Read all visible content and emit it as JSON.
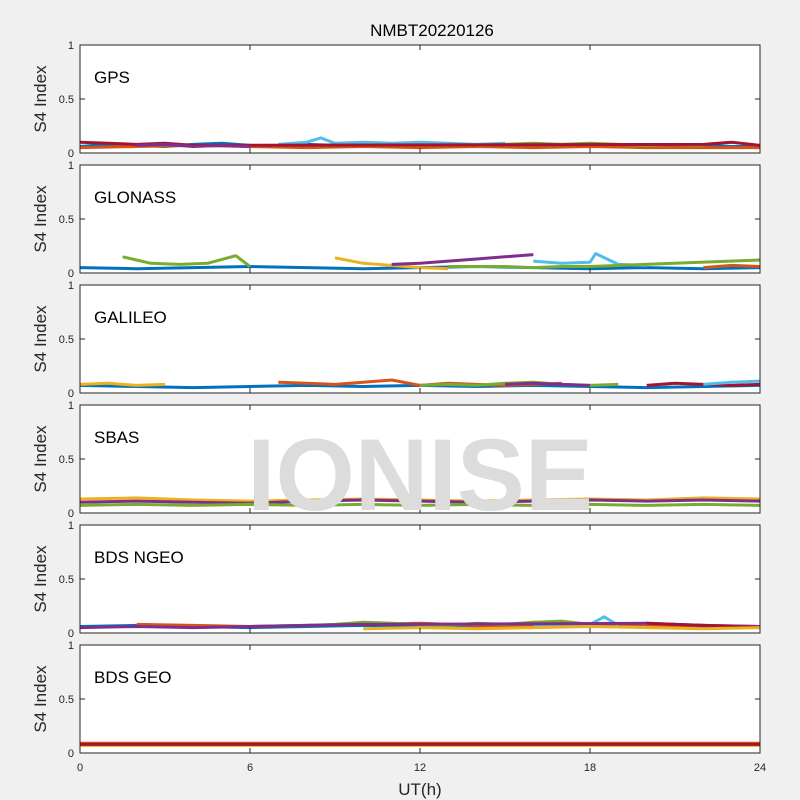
{
  "title": "NMBT20220126",
  "watermark": "IONISE",
  "colors": {
    "figure_bg": "#f0f0f0",
    "axes_bg": "#ffffff",
    "axis": "#262626",
    "watermark": "#dcdcdc",
    "series": [
      "#0072bd",
      "#d95319",
      "#edb120",
      "#7e2f8e",
      "#77ac30",
      "#4dbeee",
      "#a2142f"
    ]
  },
  "chart_data": {
    "type": "line",
    "title": "NMBT20220126",
    "xlabel": "UT(h)",
    "xlim": [
      0,
      24
    ],
    "xticks": [
      0,
      6,
      12,
      18,
      24
    ],
    "ylim": [
      0,
      1
    ],
    "yticks": [
      0,
      0.5,
      1
    ],
    "ytick_labels": [
      "0",
      "0.5",
      "1"
    ],
    "grid": false,
    "legend": "none",
    "panels": [
      {
        "label": "GPS",
        "ylabel": "S4 Index",
        "series": [
          {
            "color": "#0072bd",
            "x": [
              0,
              1,
              2,
              3,
              4,
              5,
              6,
              7,
              8,
              9,
              10,
              11,
              12,
              13,
              14,
              15,
              16,
              17,
              18,
              19,
              20,
              21,
              22,
              23,
              24
            ],
            "y": [
              0.06,
              0.08,
              0.07,
              0.06,
              0.08,
              0.09,
              0.07,
              0.06,
              0.08,
              0.07,
              0.06,
              0.08,
              0.09,
              0.07,
              0.06,
              0.08,
              0.07,
              0.06,
              0.07,
              0.06,
              0.05,
              0.06,
              0.07,
              0.06,
              0.06
            ]
          },
          {
            "color": "#d95319",
            "x": [
              0,
              2,
              4,
              6,
              8,
              10,
              12,
              14,
              16,
              18,
              20,
              22,
              24
            ],
            "y": [
              0.05,
              0.06,
              0.07,
              0.06,
              0.05,
              0.06,
              0.05,
              0.06,
              0.05,
              0.06,
              0.05,
              0.05,
              0.05
            ]
          },
          {
            "color": "#4dbeee",
            "x": [
              7,
              8,
              8.5,
              9,
              10,
              11,
              12,
              13,
              14,
              15
            ],
            "y": [
              0.08,
              0.1,
              0.14,
              0.09,
              0.1,
              0.09,
              0.1,
              0.09,
              0.08,
              0.09
            ]
          },
          {
            "color": "#77ac30",
            "x": [
              14,
              15,
              16,
              17,
              18,
              19,
              20,
              21,
              22
            ],
            "y": [
              0.07,
              0.08,
              0.09,
              0.08,
              0.09,
              0.08,
              0.07,
              0.08,
              0.07
            ]
          },
          {
            "color": "#a2142f",
            "x": [
              0,
              1,
              2,
              3,
              4,
              22,
              23,
              24
            ],
            "y": [
              0.1,
              0.09,
              0.08,
              0.09,
              0.07,
              0.08,
              0.1,
              0.07
            ]
          },
          {
            "color": "#7e2f8e",
            "x": [
              2,
              3,
              4,
              5,
              6
            ],
            "y": [
              0.07,
              0.08,
              0.06,
              0.07,
              0.06
            ]
          }
        ]
      },
      {
        "label": "GLONASS",
        "ylabel": "S4 Index",
        "series": [
          {
            "color": "#0072bd",
            "x": [
              0,
              2,
              4,
              6,
              8,
              10,
              12,
              14,
              16,
              18,
              20,
              22,
              24
            ],
            "y": [
              0.05,
              0.04,
              0.05,
              0.06,
              0.05,
              0.04,
              0.05,
              0.06,
              0.05,
              0.04,
              0.05,
              0.04,
              0.05
            ]
          },
          {
            "color": "#77ac30",
            "x": [
              1.5,
              2.5,
              3.5,
              4.5,
              5.5,
              6
            ],
            "y": [
              0.15,
              0.09,
              0.08,
              0.09,
              0.16,
              0.06
            ]
          },
          {
            "color": "#edb120",
            "x": [
              9,
              10,
              11,
              12,
              13
            ],
            "y": [
              0.14,
              0.09,
              0.07,
              0.05,
              0.04
            ]
          },
          {
            "color": "#7e2f8e",
            "x": [
              11,
              12,
              13,
              14,
              15,
              16
            ],
            "y": [
              0.08,
              0.09,
              0.11,
              0.13,
              0.15,
              0.17
            ]
          },
          {
            "color": "#4dbeee",
            "x": [
              16,
              17,
              18,
              18.2,
              19,
              20
            ],
            "y": [
              0.11,
              0.09,
              0.1,
              0.18,
              0.08,
              0.07
            ]
          },
          {
            "color": "#d95319",
            "x": [
              22,
              23,
              24
            ],
            "y": [
              0.05,
              0.07,
              0.06
            ]
          },
          {
            "color": "#77ac30",
            "x": [
              13,
              14,
              15,
              16,
              17,
              18,
              24
            ],
            "y": [
              0.06,
              0.06,
              0.06,
              0.05,
              0.06,
              0.06,
              0.12
            ]
          }
        ]
      },
      {
        "label": "GALILEO",
        "ylabel": "S4 Index",
        "series": [
          {
            "color": "#0072bd",
            "x": [
              0,
              2,
              4,
              6,
              8,
              10,
              12,
              14,
              16,
              18,
              20,
              22,
              24
            ],
            "y": [
              0.07,
              0.06,
              0.05,
              0.06,
              0.07,
              0.06,
              0.07,
              0.06,
              0.07,
              0.06,
              0.05,
              0.06,
              0.07
            ]
          },
          {
            "color": "#d95319",
            "x": [
              7,
              8,
              9,
              10,
              11,
              12,
              13,
              14,
              15,
              16,
              17
            ],
            "y": [
              0.1,
              0.09,
              0.08,
              0.1,
              0.12,
              0.07,
              0.09,
              0.08,
              0.07,
              0.08,
              0.09
            ]
          },
          {
            "color": "#77ac30",
            "x": [
              12,
              13,
              14,
              15,
              16,
              17,
              18,
              19
            ],
            "y": [
              0.07,
              0.08,
              0.07,
              0.09,
              0.1,
              0.08,
              0.07,
              0.08
            ]
          },
          {
            "color": "#a2142f",
            "x": [
              20,
              21,
              22,
              23,
              24
            ],
            "y": [
              0.07,
              0.09,
              0.08,
              0.07,
              0.08
            ]
          },
          {
            "color": "#4dbeee",
            "x": [
              22,
              23,
              24
            ],
            "y": [
              0.08,
              0.1,
              0.11
            ]
          },
          {
            "color": "#7e2f8e",
            "x": [
              15,
              16,
              17,
              18
            ],
            "y": [
              0.08,
              0.09,
              0.08,
              0.07
            ]
          },
          {
            "color": "#edb120",
            "x": [
              0,
              1,
              2,
              3
            ],
            "y": [
              0.08,
              0.09,
              0.07,
              0.08
            ]
          }
        ]
      },
      {
        "label": "SBAS",
        "ylabel": "S4 Index",
        "series": [
          {
            "color": "#edb120",
            "x": [
              0,
              2,
              4,
              6,
              8,
              10,
              12,
              14,
              16,
              18,
              20,
              22,
              24
            ],
            "y": [
              0.13,
              0.14,
              0.12,
              0.11,
              0.12,
              0.13,
              0.12,
              0.11,
              0.12,
              0.13,
              0.12,
              0.14,
              0.13
            ]
          },
          {
            "color": "#7e2f8e",
            "x": [
              0,
              2,
              4,
              6,
              8,
              10,
              12,
              14,
              16,
              18,
              20,
              22,
              24
            ],
            "y": [
              0.1,
              0.11,
              0.1,
              0.09,
              0.11,
              0.12,
              0.11,
              0.1,
              0.11,
              0.12,
              0.11,
              0.12,
              0.11
            ]
          },
          {
            "color": "#77ac30",
            "x": [
              0,
              2,
              4,
              6,
              8,
              10,
              12,
              14,
              16,
              18,
              20,
              22,
              24
            ],
            "y": [
              0.07,
              0.08,
              0.07,
              0.08,
              0.07,
              0.08,
              0.07,
              0.08,
              0.07,
              0.08,
              0.07,
              0.08,
              0.07
            ]
          }
        ]
      },
      {
        "label": "BDS NGEO",
        "ylabel": "S4 Index",
        "series": [
          {
            "color": "#0072bd",
            "x": [
              0,
              2,
              4,
              6,
              8,
              10,
              12,
              14,
              16,
              18,
              20,
              22,
              24
            ],
            "y": [
              0.06,
              0.07,
              0.06,
              0.05,
              0.06,
              0.07,
              0.06,
              0.05,
              0.06,
              0.07,
              0.06,
              0.05,
              0.06
            ]
          },
          {
            "color": "#d95319",
            "x": [
              2,
              4,
              6,
              8,
              10,
              12,
              14,
              16,
              18,
              20,
              22,
              24
            ],
            "y": [
              0.08,
              0.07,
              0.06,
              0.07,
              0.08,
              0.09,
              0.07,
              0.06,
              0.07,
              0.06,
              0.07,
              0.06
            ]
          },
          {
            "color": "#77ac30",
            "x": [
              8,
              9,
              10,
              11,
              12,
              13,
              14,
              15,
              16,
              17,
              18
            ],
            "y": [
              0.07,
              0.08,
              0.1,
              0.09,
              0.08,
              0.07,
              0.09,
              0.08,
              0.1,
              0.11,
              0.08
            ]
          },
          {
            "color": "#4dbeee",
            "x": [
              16,
              17,
              18,
              18.5,
              19
            ],
            "y": [
              0.06,
              0.07,
              0.08,
              0.15,
              0.07
            ]
          },
          {
            "color": "#7e2f8e",
            "x": [
              0,
              2,
              4,
              6,
              8,
              10,
              20,
              22,
              24
            ],
            "y": [
              0.05,
              0.06,
              0.05,
              0.06,
              0.07,
              0.08,
              0.09,
              0.07,
              0.06
            ]
          },
          {
            "color": "#a2142f",
            "x": [
              20,
              21,
              22,
              23,
              24
            ],
            "y": [
              0.09,
              0.08,
              0.07,
              0.06,
              0.05
            ]
          },
          {
            "color": "#edb120",
            "x": [
              10,
              12,
              14,
              16,
              18,
              20,
              22,
              24
            ],
            "y": [
              0.04,
              0.05,
              0.04,
              0.05,
              0.06,
              0.05,
              0.04,
              0.05
            ]
          }
        ]
      },
      {
        "label": "BDS GEO",
        "ylabel": "S4 Index",
        "series": [
          {
            "color": "#d95319",
            "x": [
              0,
              3,
              6,
              9,
              12,
              15,
              18,
              21,
              24
            ],
            "y": [
              0.09,
              0.09,
              0.09,
              0.09,
              0.09,
              0.09,
              0.09,
              0.09,
              0.09
            ]
          },
          {
            "color": "#edb120",
            "x": [
              0,
              3,
              6,
              9,
              12,
              15,
              18,
              21,
              24
            ],
            "y": [
              0.07,
              0.07,
              0.07,
              0.07,
              0.07,
              0.07,
              0.07,
              0.07,
              0.07
            ]
          },
          {
            "color": "#a2142f",
            "x": [
              0,
              3,
              6,
              9,
              12,
              15,
              18,
              21,
              24
            ],
            "y": [
              0.08,
              0.08,
              0.08,
              0.08,
              0.08,
              0.08,
              0.08,
              0.08,
              0.08
            ]
          }
        ]
      }
    ]
  }
}
